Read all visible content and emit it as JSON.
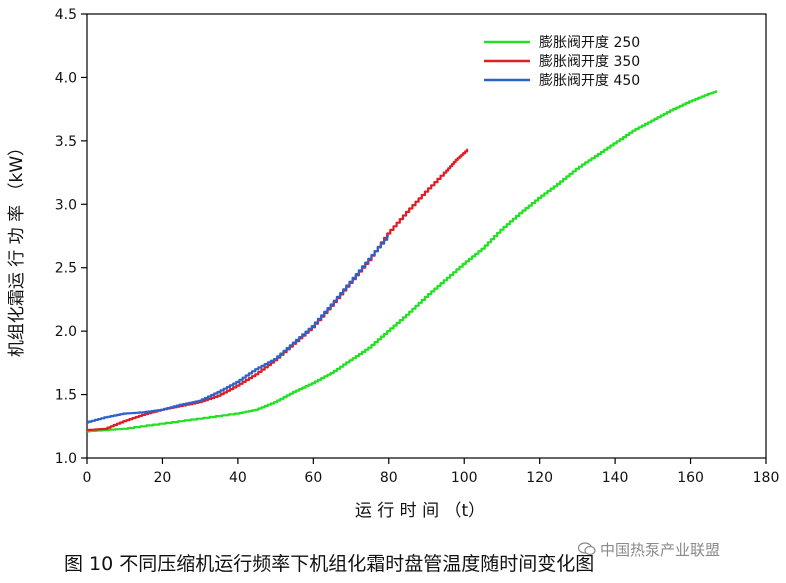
{
  "chart_data": {
    "type": "line",
    "title": "",
    "xlabel": "运 行 时 间 （t）",
    "ylabel": "机组化霜运 行 功 率 （kW）",
    "xlim": [
      0,
      180
    ],
    "ylim": [
      1.0,
      4.5
    ],
    "x_ticks": [
      0,
      20,
      40,
      60,
      80,
      100,
      120,
      140,
      160,
      180
    ],
    "y_ticks": [
      1.0,
      1.5,
      2.0,
      2.5,
      3.0,
      3.5,
      4.0,
      4.5
    ],
    "x_tick_labels": [
      "0",
      "20",
      "40",
      "60",
      "80",
      "100",
      "120",
      "140",
      "160",
      "180"
    ],
    "y_tick_labels": [
      "1.0",
      "1.5",
      "2.0",
      "2.5",
      "3.0",
      "3.5",
      "4.0",
      "4.5"
    ],
    "grid": false,
    "legend_position": "top-right",
    "series": [
      {
        "name": "膨胀阀开度 250",
        "color": "#22e022",
        "points": [
          [
            0,
            1.21
          ],
          [
            10,
            1.23
          ],
          [
            20,
            1.27
          ],
          [
            30,
            1.31
          ],
          [
            40,
            1.35
          ],
          [
            45,
            1.38
          ],
          [
            50,
            1.44
          ],
          [
            55,
            1.52
          ],
          [
            60,
            1.59
          ],
          [
            65,
            1.67
          ],
          [
            70,
            1.77
          ],
          [
            75,
            1.87
          ],
          [
            80,
            2.0
          ],
          [
            85,
            2.13
          ],
          [
            90,
            2.27
          ],
          [
            95,
            2.4
          ],
          [
            100,
            2.53
          ],
          [
            105,
            2.65
          ],
          [
            110,
            2.8
          ],
          [
            115,
            2.93
          ],
          [
            120,
            3.05
          ],
          [
            125,
            3.16
          ],
          [
            130,
            3.28
          ],
          [
            135,
            3.38
          ],
          [
            140,
            3.48
          ],
          [
            145,
            3.58
          ],
          [
            150,
            3.66
          ],
          [
            155,
            3.74
          ],
          [
            160,
            3.81
          ],
          [
            165,
            3.87
          ],
          [
            167,
            3.89
          ]
        ]
      },
      {
        "name": "膨胀阀开度 350",
        "color": "#e01c24",
        "points": [
          [
            0,
            1.22
          ],
          [
            5,
            1.23
          ],
          [
            10,
            1.29
          ],
          [
            15,
            1.34
          ],
          [
            20,
            1.38
          ],
          [
            25,
            1.41
          ],
          [
            30,
            1.44
          ],
          [
            35,
            1.49
          ],
          [
            40,
            1.57
          ],
          [
            45,
            1.66
          ],
          [
            50,
            1.77
          ],
          [
            55,
            1.9
          ],
          [
            60,
            2.03
          ],
          [
            65,
            2.2
          ],
          [
            70,
            2.38
          ],
          [
            75,
            2.56
          ],
          [
            80,
            2.77
          ],
          [
            85,
            2.94
          ],
          [
            90,
            3.1
          ],
          [
            95,
            3.25
          ],
          [
            98,
            3.35
          ],
          [
            101,
            3.43
          ]
        ]
      },
      {
        "name": "膨胀阀开度 450",
        "color": "#2f62c8",
        "points": [
          [
            0,
            1.28
          ],
          [
            5,
            1.32
          ],
          [
            10,
            1.35
          ],
          [
            15,
            1.36
          ],
          [
            20,
            1.38
          ],
          [
            25,
            1.42
          ],
          [
            30,
            1.45
          ],
          [
            35,
            1.52
          ],
          [
            40,
            1.6
          ],
          [
            45,
            1.7
          ],
          [
            50,
            1.78
          ],
          [
            55,
            1.91
          ],
          [
            60,
            2.04
          ],
          [
            65,
            2.21
          ],
          [
            70,
            2.39
          ],
          [
            75,
            2.57
          ],
          [
            80,
            2.75
          ]
        ]
      }
    ]
  },
  "caption": "图 10  不同压缩机运行频率下机组化霜时盘管温度随时间变化图",
  "watermark": "中国热泵产业联盟"
}
